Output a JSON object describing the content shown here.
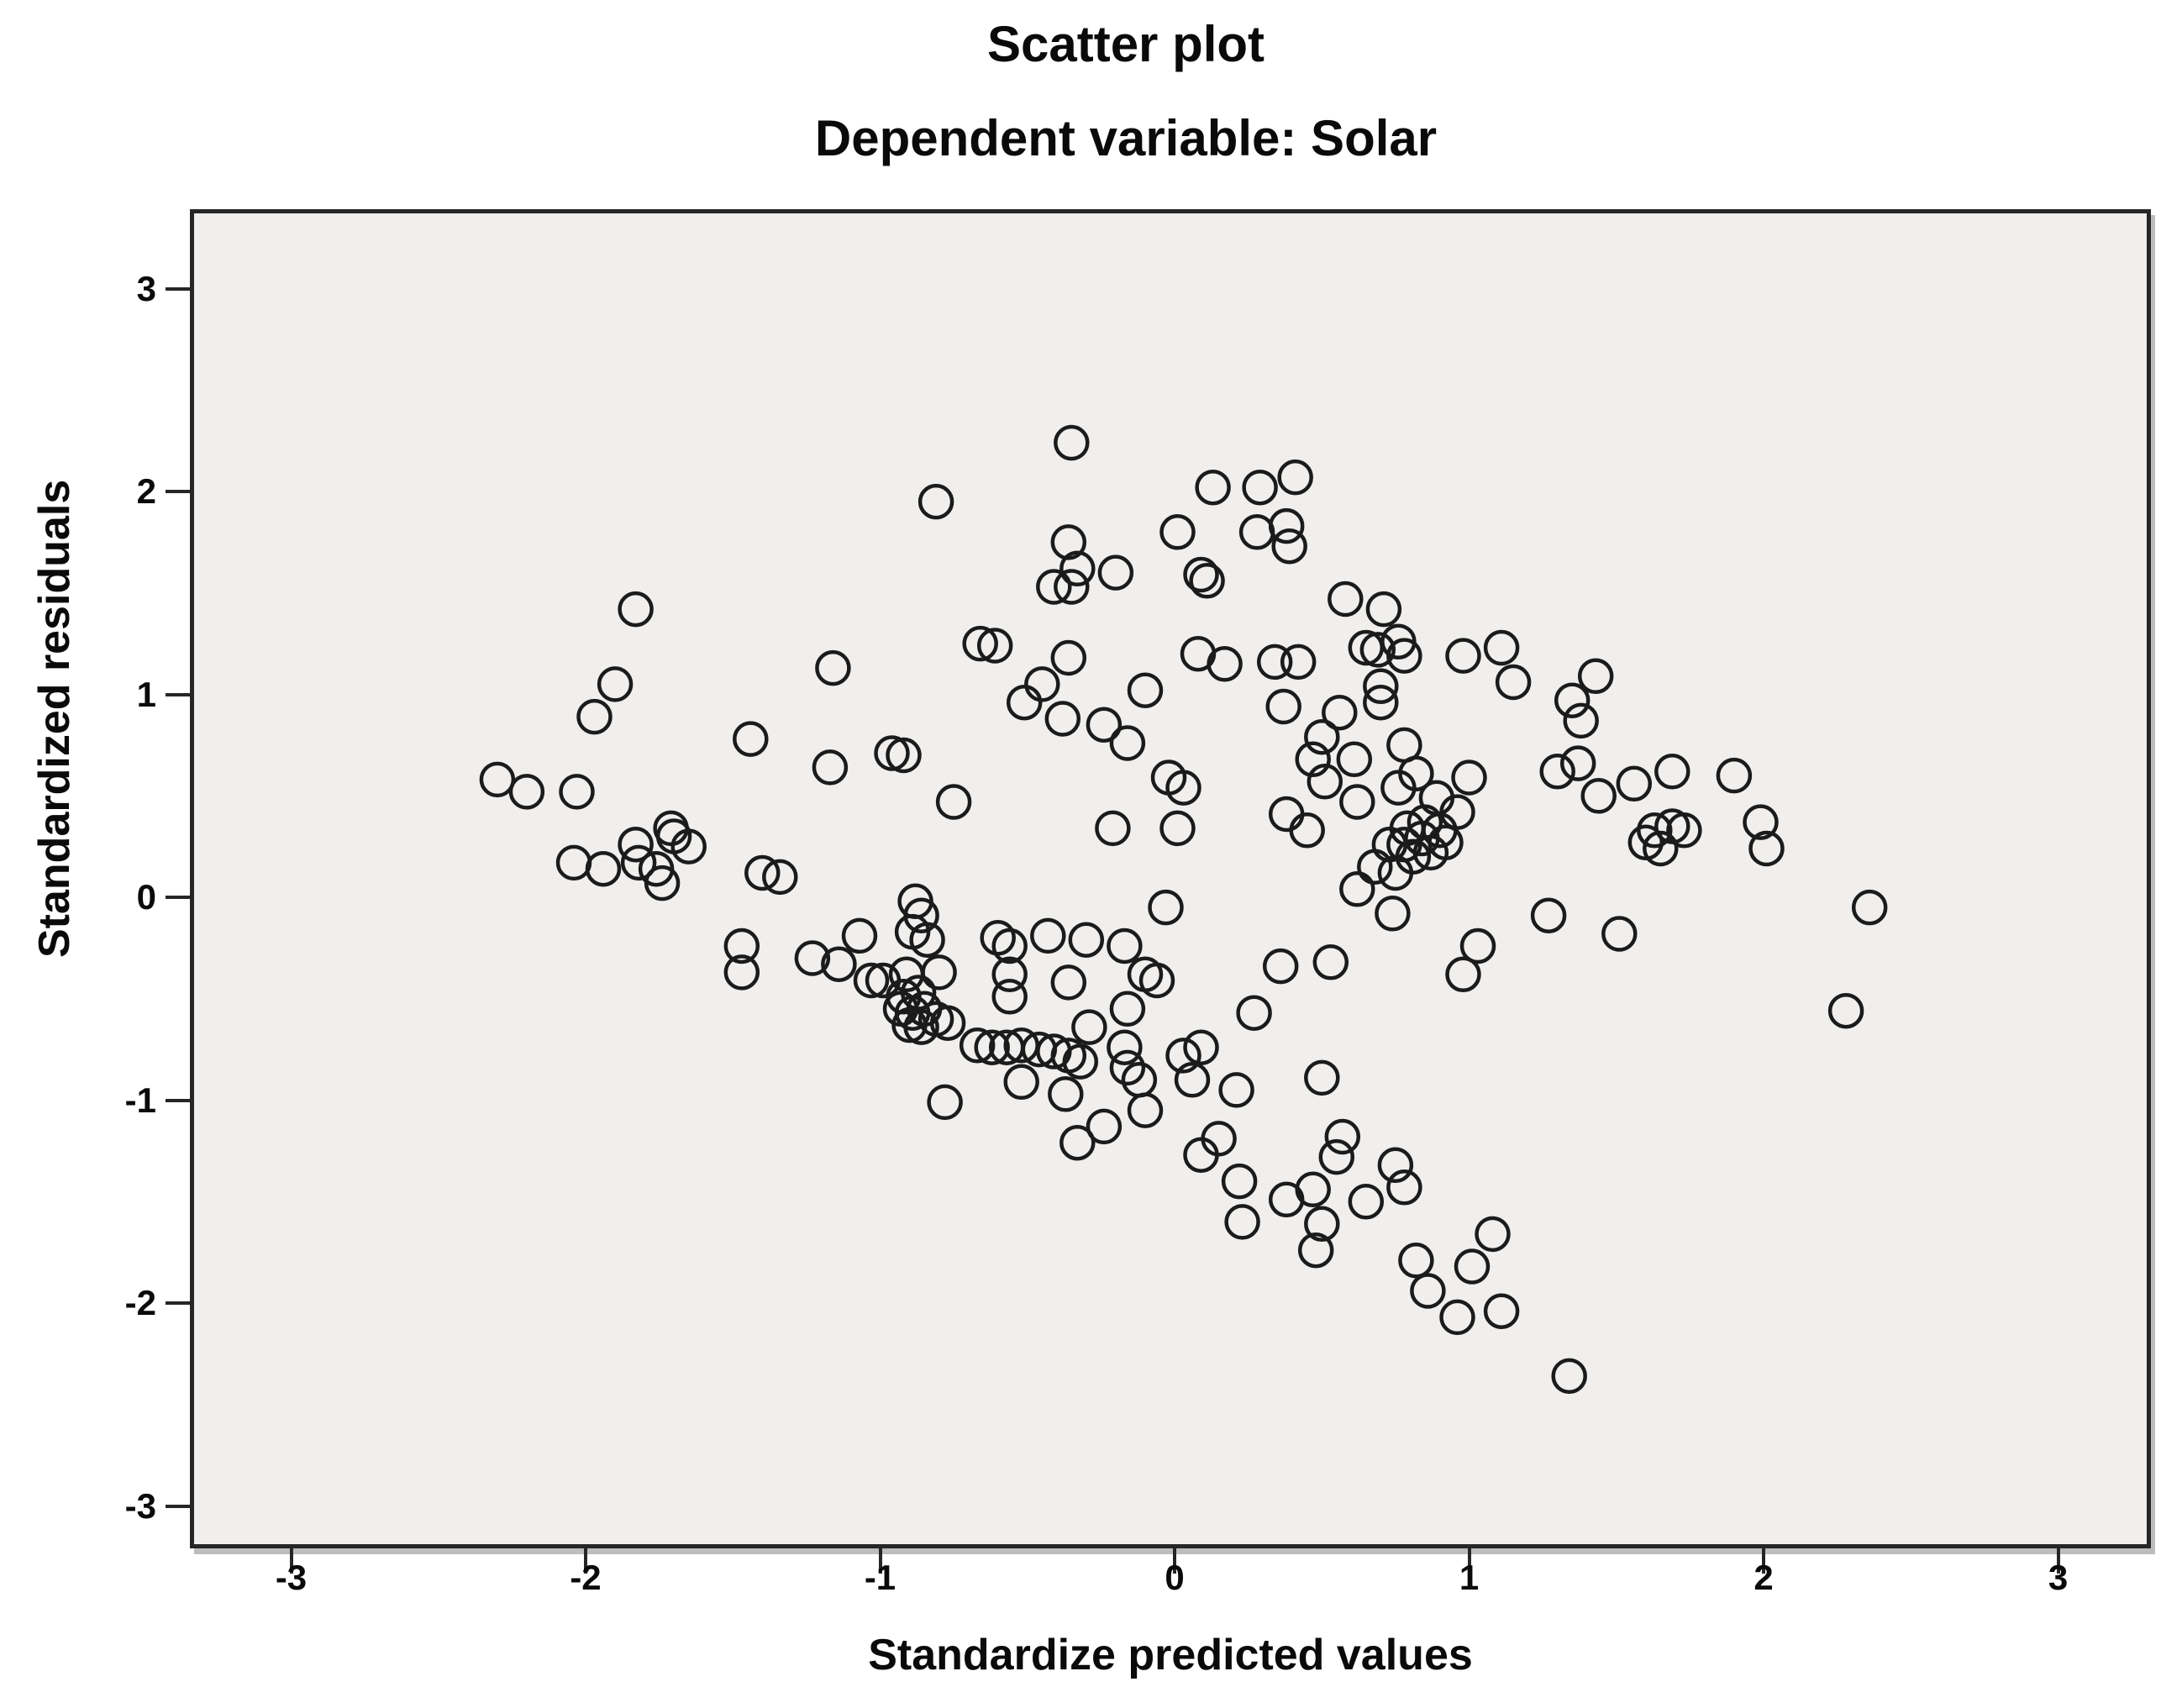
{
  "title": "Scatter plot",
  "subtitle": "Dependent variable: Solar",
  "colors": {
    "page_background": "#ffffff",
    "plot_background": "#f0efed",
    "frame": "#262626",
    "marker_stroke": "#1b1b1b",
    "text": "#0a0a0a"
  },
  "chart_data": {
    "type": "scatter",
    "title": "Scatter plot",
    "subtitle": "Dependent variable: Solar",
    "xlabel": "Standardize predicted values",
    "ylabel": "Standardized residuals",
    "xlim": [
      -3.33,
      3.3
    ],
    "ylim": [
      -3.19,
      3.37
    ],
    "x_ticks": [
      "-3",
      "-2",
      "-1",
      "0",
      "1",
      "2",
      "3"
    ],
    "y_ticks": [
      "3",
      "2",
      "1",
      "0",
      "-1",
      "-2",
      "-3"
    ],
    "grid": false,
    "legend_position": "none",
    "marker": "open-circle",
    "points": [
      [
        -2.3,
        0.58
      ],
      [
        -2.2,
        0.52
      ],
      [
        -2.03,
        0.52
      ],
      [
        -2.04,
        0.17
      ],
      [
        -1.94,
        0.14
      ],
      [
        -1.83,
        1.42
      ],
      [
        -1.9,
        1.05
      ],
      [
        -1.97,
        0.89
      ],
      [
        -1.71,
        0.34
      ],
      [
        -1.7,
        0.3
      ],
      [
        -1.65,
        0.25
      ],
      [
        -1.83,
        0.26
      ],
      [
        -1.82,
        0.17
      ],
      [
        -1.76,
        0.14
      ],
      [
        -1.74,
        0.07
      ],
      [
        -1.44,
        0.78
      ],
      [
        -1.4,
        0.12
      ],
      [
        -1.34,
        0.1
      ],
      [
        -1.16,
        1.13
      ],
      [
        -1.17,
        0.64
      ],
      [
        -0.35,
        2.24
      ],
      [
        -0.81,
        1.95
      ],
      [
        0.13,
        2.02
      ],
      [
        0.29,
        2.02
      ],
      [
        0.41,
        2.07
      ],
      [
        0.01,
        1.8
      ],
      [
        0.28,
        1.8
      ],
      [
        0.38,
        1.83
      ],
      [
        0.39,
        1.73
      ],
      [
        -0.36,
        1.75
      ],
      [
        -0.33,
        1.62
      ],
      [
        -0.41,
        1.53
      ],
      [
        -0.35,
        1.53
      ],
      [
        -0.2,
        1.6
      ],
      [
        0.09,
        1.59
      ],
      [
        0.11,
        1.56
      ],
      [
        0.58,
        1.47
      ],
      [
        0.71,
        1.42
      ],
      [
        -0.66,
        1.25
      ],
      [
        -0.61,
        1.24
      ],
      [
        -0.36,
        1.18
      ],
      [
        -0.45,
        1.05
      ],
      [
        -0.51,
        0.96
      ],
      [
        -0.38,
        0.88
      ],
      [
        -0.24,
        0.85
      ],
      [
        -0.16,
        0.76
      ],
      [
        -0.1,
        1.02
      ],
      [
        0.08,
        1.2
      ],
      [
        0.17,
        1.15
      ],
      [
        0.34,
        1.16
      ],
      [
        0.42,
        1.16
      ],
      [
        0.37,
        0.94
      ],
      [
        0.56,
        0.91
      ],
      [
        0.5,
        0.79
      ],
      [
        0.47,
        0.68
      ],
      [
        0.61,
        0.68
      ],
      [
        0.65,
        1.23
      ],
      [
        0.69,
        1.22
      ],
      [
        0.76,
        1.26
      ],
      [
        0.78,
        1.19
      ],
      [
        0.7,
        1.04
      ],
      [
        0.7,
        0.96
      ],
      [
        0.98,
        1.19
      ],
      [
        1.11,
        1.23
      ],
      [
        1.15,
        1.06
      ],
      [
        -0.96,
        0.71
      ],
      [
        -0.92,
        0.7
      ],
      [
        -0.75,
        0.47
      ],
      [
        -0.21,
        0.34
      ],
      [
        -0.02,
        0.59
      ],
      [
        0.03,
        0.54
      ],
      [
        0.01,
        0.34
      ],
      [
        0.45,
        0.33
      ],
      [
        0.38,
        0.41
      ],
      [
        0.51,
        0.57
      ],
      [
        0.62,
        0.47
      ],
      [
        0.76,
        0.54
      ],
      [
        0.82,
        0.61
      ],
      [
        0.89,
        0.49
      ],
      [
        0.96,
        0.42
      ],
      [
        1.0,
        0.59
      ],
      [
        0.78,
        0.75
      ],
      [
        0.79,
        0.34
      ],
      [
        0.85,
        0.37
      ],
      [
        0.9,
        0.33
      ],
      [
        0.84,
        0.29
      ],
      [
        0.92,
        0.27
      ],
      [
        0.78,
        0.26
      ],
      [
        0.73,
        0.26
      ],
      [
        0.87,
        0.22
      ],
      [
        0.81,
        0.2
      ],
      [
        0.75,
        0.12
      ],
      [
        0.68,
        0.15
      ],
      [
        0.62,
        0.04
      ],
      [
        0.74,
        -0.08
      ],
      [
        1.43,
        1.09
      ],
      [
        1.35,
        0.97
      ],
      [
        1.38,
        0.87
      ],
      [
        1.3,
        0.62
      ],
      [
        1.37,
        0.66
      ],
      [
        1.44,
        0.5
      ],
      [
        1.56,
        0.56
      ],
      [
        1.69,
        0.62
      ],
      [
        1.9,
        0.6
      ],
      [
        1.99,
        0.37
      ],
      [
        2.01,
        0.24
      ],
      [
        1.63,
        0.33
      ],
      [
        1.69,
        0.35
      ],
      [
        1.73,
        0.33
      ],
      [
        1.6,
        0.27
      ],
      [
        1.65,
        0.24
      ],
      [
        -1.23,
        -0.3
      ],
      [
        -1.14,
        -0.33
      ],
      [
        -1.07,
        -0.19
      ],
      [
        -0.88,
        -0.02
      ],
      [
        -0.86,
        -0.09
      ],
      [
        -0.89,
        -0.17
      ],
      [
        -0.84,
        -0.21
      ],
      [
        -1.47,
        -0.24
      ],
      [
        -1.47,
        -0.37
      ],
      [
        -1.03,
        -0.41
      ],
      [
        -0.99,
        -0.41
      ],
      [
        -0.91,
        -0.38
      ],
      [
        -0.8,
        -0.37
      ],
      [
        -0.92,
        -0.49
      ],
      [
        -0.87,
        -0.47
      ],
      [
        -0.6,
        -0.2
      ],
      [
        -0.56,
        -0.24
      ],
      [
        -0.43,
        -0.19
      ],
      [
        -0.3,
        -0.21
      ],
      [
        -0.17,
        -0.24
      ],
      [
        -0.03,
        -0.05
      ],
      [
        -0.93,
        -0.55
      ],
      [
        -0.89,
        -0.57
      ],
      [
        -0.85,
        -0.55
      ],
      [
        -0.9,
        -0.63
      ],
      [
        -0.86,
        -0.64
      ],
      [
        -0.81,
        -0.6
      ],
      [
        -0.77,
        -0.62
      ],
      [
        -0.56,
        -0.38
      ],
      [
        -0.56,
        -0.49
      ],
      [
        -0.36,
        -0.42
      ],
      [
        -0.29,
        -0.64
      ],
      [
        -0.1,
        -0.38
      ],
      [
        -0.06,
        -0.41
      ],
      [
        -0.16,
        -0.55
      ],
      [
        -0.67,
        -0.73
      ],
      [
        -0.62,
        -0.74
      ],
      [
        -0.57,
        -0.74
      ],
      [
        -0.52,
        -0.73
      ],
      [
        -0.46,
        -0.75
      ],
      [
        -0.41,
        -0.76
      ],
      [
        -0.36,
        -0.78
      ],
      [
        -0.32,
        -0.81
      ],
      [
        -0.17,
        -0.74
      ],
      [
        -0.16,
        -0.84
      ],
      [
        -0.12,
        -0.9
      ],
      [
        -0.78,
        -1.01
      ],
      [
        -0.52,
        -0.91
      ],
      [
        -0.37,
        -0.97
      ],
      [
        -0.33,
        -1.21
      ],
      [
        -0.24,
        -1.13
      ],
      [
        -0.1,
        -1.05
      ],
      [
        0.03,
        -0.78
      ],
      [
        0.09,
        -0.74
      ],
      [
        0.06,
        -0.9
      ],
      [
        0.21,
        -0.95
      ],
      [
        0.27,
        -0.57
      ],
      [
        0.36,
        -0.34
      ],
      [
        0.53,
        -0.32
      ],
      [
        0.5,
        -0.89
      ],
      [
        0.98,
        -0.38
      ],
      [
        1.03,
        -0.24
      ],
      [
        1.27,
        -0.09
      ],
      [
        1.51,
        -0.18
      ],
      [
        2.36,
        -0.05
      ],
      [
        2.28,
        -0.56
      ],
      [
        0.15,
        -1.19
      ],
      [
        0.09,
        -1.27
      ],
      [
        0.22,
        -1.4
      ],
      [
        0.23,
        -1.6
      ],
      [
        0.57,
        -1.18
      ],
      [
        0.55,
        -1.28
      ],
      [
        0.38,
        -1.49
      ],
      [
        0.47,
        -1.44
      ],
      [
        0.5,
        -1.61
      ],
      [
        0.48,
        -1.74
      ],
      [
        0.65,
        -1.5
      ],
      [
        0.75,
        -1.32
      ],
      [
        0.78,
        -1.43
      ],
      [
        0.82,
        -1.79
      ],
      [
        0.86,
        -1.94
      ],
      [
        1.01,
        -1.82
      ],
      [
        1.08,
        -1.66
      ],
      [
        0.96,
        -2.07
      ],
      [
        1.11,
        -2.04
      ],
      [
        1.34,
        -2.36
      ]
    ]
  }
}
